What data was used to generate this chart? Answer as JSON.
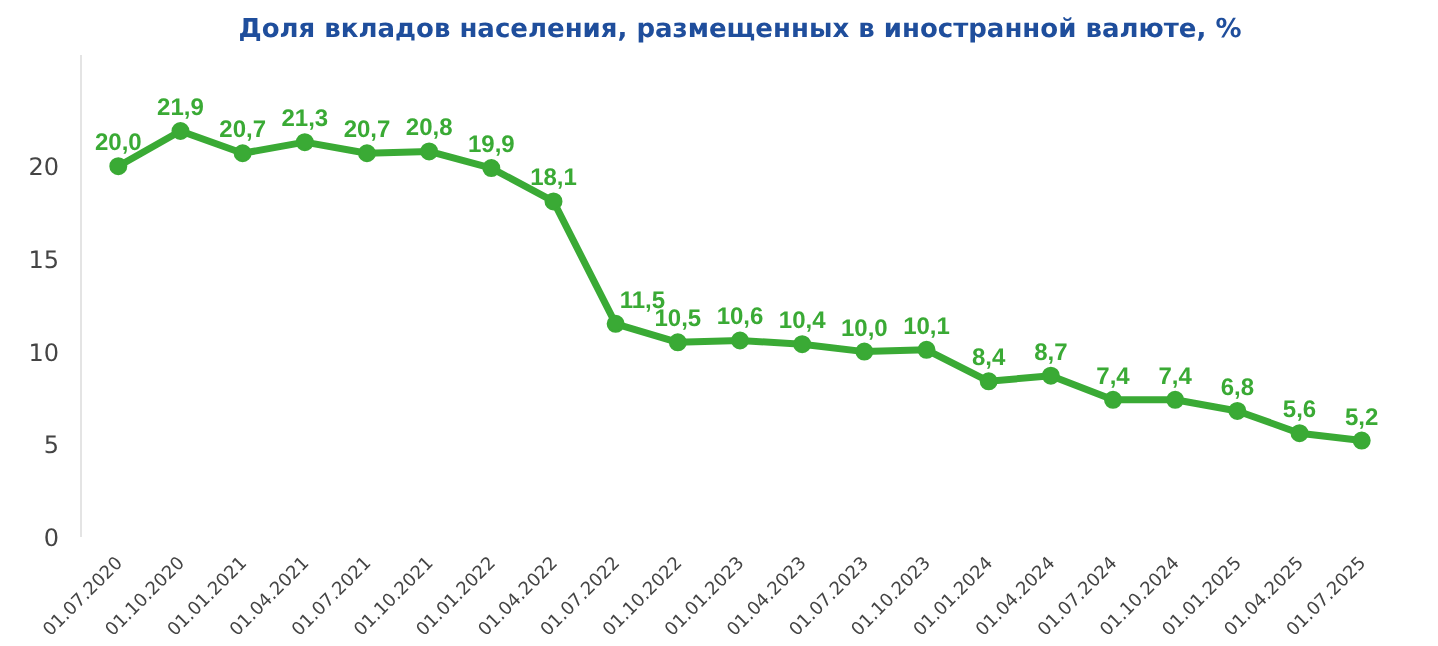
{
  "chart_data": {
    "type": "line",
    "title": "Доля вкладов населения, размещенных в иностранной валюте, %",
    "categories": [
      "01.07.2020",
      "01.10.2020",
      "01.01.2021",
      "01.04.2021",
      "01.07.2021",
      "01.10.2021",
      "01.01.2022",
      "01.04.2022",
      "01.07.2022",
      "01.10.2022",
      "01.01.2023",
      "01.04.2023",
      "01.07.2023",
      "01.10.2023",
      "01.01.2024",
      "01.04.2024",
      "01.07.2024",
      "01.10.2024",
      "01.01.2025",
      "01.04.2025",
      "01.07.2025"
    ],
    "values": [
      20.0,
      21.9,
      20.7,
      21.3,
      20.7,
      20.8,
      19.9,
      18.1,
      11.5,
      10.5,
      10.6,
      10.4,
      10.0,
      10.1,
      8.4,
      8.7,
      7.4,
      7.4,
      6.8,
      5.6,
      5.2
    ],
    "value_labels": [
      "20,0",
      "21,9",
      "20,7",
      "21,3",
      "20,7",
      "20,8",
      "19,9",
      "18,1",
      "11,5",
      "10,5",
      "10,6",
      "10,4",
      "10,0",
      "10,1",
      "8,4",
      "8,7",
      "7,4",
      "7,4",
      "6,8",
      "5,6",
      "5,2"
    ],
    "color": "#3aaa35",
    "ylim": [
      0,
      26
    ],
    "yticks": [
      0,
      5,
      10,
      15,
      20
    ],
    "grid": false,
    "legend": false,
    "marker": "circle",
    "line_style": "solid"
  }
}
